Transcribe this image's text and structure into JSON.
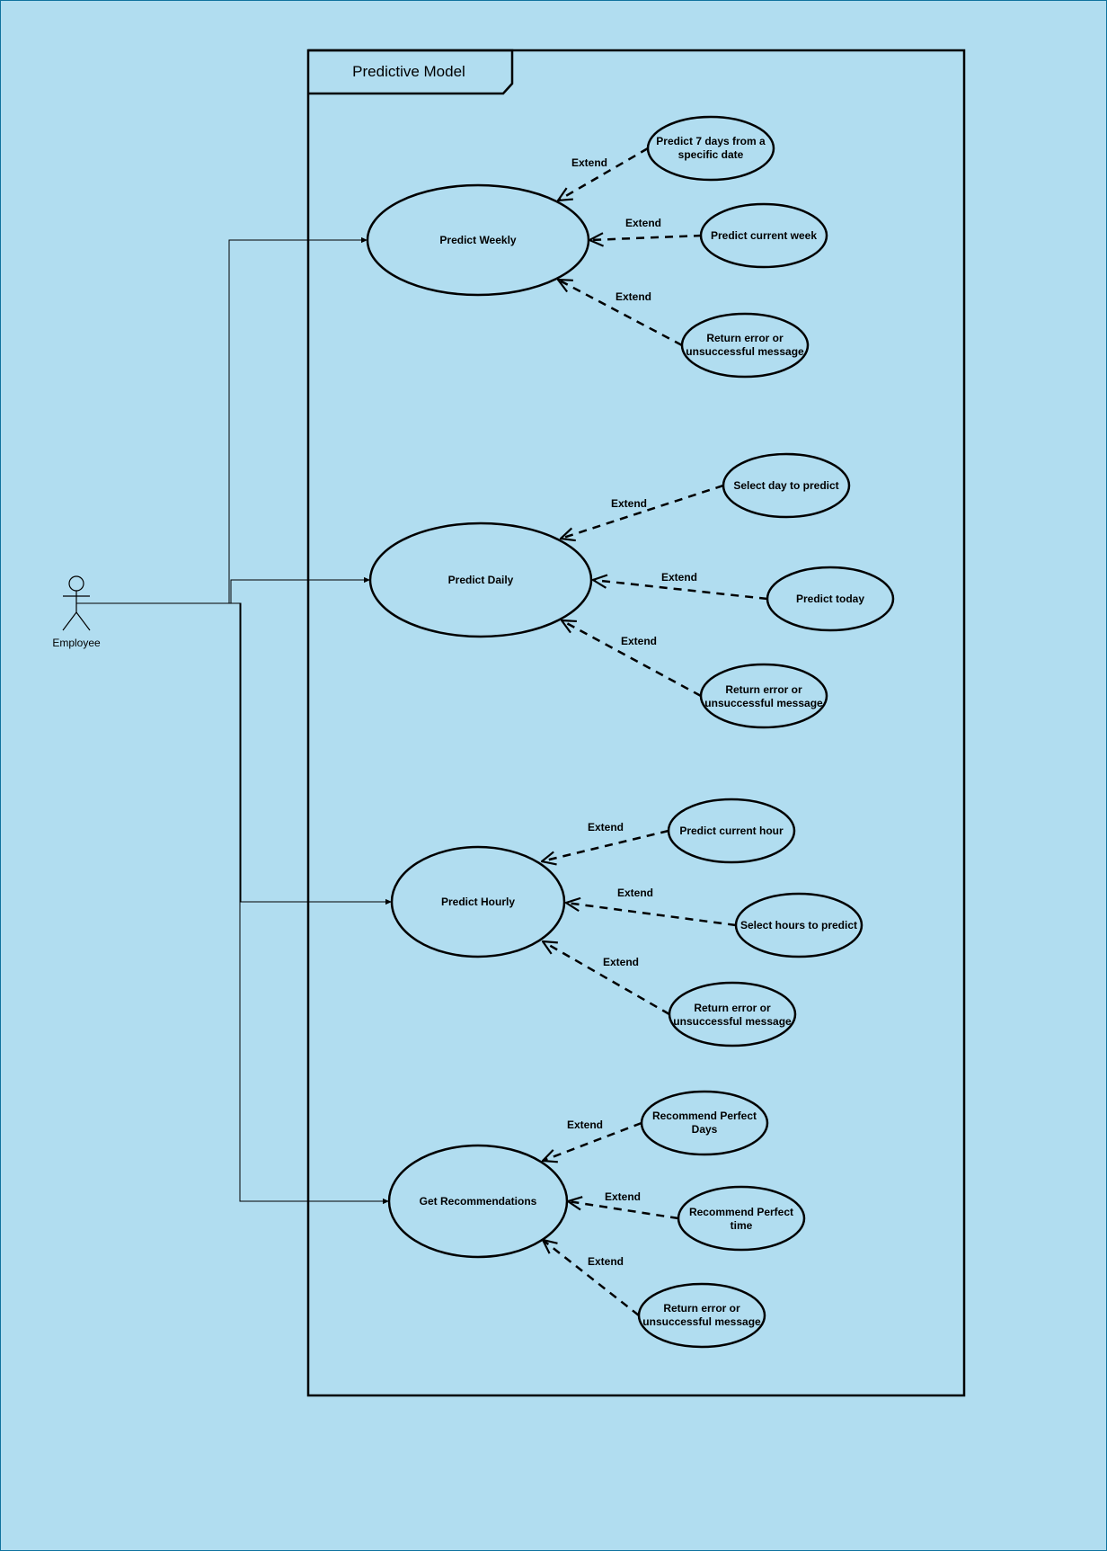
{
  "colors": {
    "background": "#b1ddf0",
    "border": "#10739e",
    "stroke": "#000000"
  },
  "frame": {
    "title": "Predictive Model"
  },
  "actor": {
    "label": "Employee"
  },
  "use_cases": {
    "weekly": {
      "label": "Predict Weekly",
      "extensions": [
        {
          "lines": [
            "Predict 7 days from a",
            "specific date"
          ],
          "relation": "Extend"
        },
        {
          "lines": [
            "Predict current week"
          ],
          "relation": "Extend"
        },
        {
          "lines": [
            "Return error or",
            "unsuccessful message"
          ],
          "relation": "Extend"
        }
      ]
    },
    "daily": {
      "label": "Predict Daily",
      "extensions": [
        {
          "lines": [
            "Select day to predict"
          ],
          "relation": "Extend"
        },
        {
          "lines": [
            "Predict today"
          ],
          "relation": "Extend"
        },
        {
          "lines": [
            "Return error or",
            "unsuccessful message"
          ],
          "relation": "Extend"
        }
      ]
    },
    "hourly": {
      "label": "Predict Hourly",
      "extensions": [
        {
          "lines": [
            "Predict current hour"
          ],
          "relation": "Extend"
        },
        {
          "lines": [
            "Select hours to predict"
          ],
          "relation": "Extend"
        },
        {
          "lines": [
            "Return error or",
            "unsuccessful message"
          ],
          "relation": "Extend"
        }
      ]
    },
    "recommend": {
      "label": "Get Recommendations",
      "extensions": [
        {
          "lines": [
            "Recommend Perfect",
            "Days"
          ],
          "relation": "Extend"
        },
        {
          "lines": [
            "Recommend Perfect",
            "time"
          ],
          "relation": "Extend"
        },
        {
          "lines": [
            "Return error or",
            "unsuccessful message"
          ],
          "relation": "Extend"
        }
      ]
    }
  }
}
